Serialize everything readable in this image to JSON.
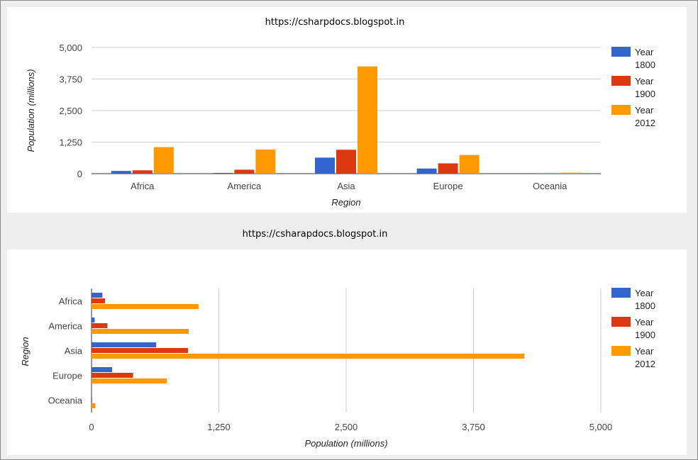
{
  "colors": {
    "year_1800": "#3366cc",
    "year_1900": "#dc3912",
    "year_2012": "#ff9900",
    "gridline": "#cccccc",
    "baseline": "#333333",
    "band": "#eeeeee"
  },
  "chart_data": [
    {
      "type": "bar",
      "orientation": "vertical",
      "title": "https://csharpdocs.blogspot.in",
      "xlabel": "Region",
      "ylabel": "Population (millions)",
      "categories": [
        "Africa",
        "America",
        "Asia",
        "Europe",
        "Oceania"
      ],
      "ylim": [
        0,
        5000
      ],
      "ticks": [
        0,
        1250,
        2500,
        3750,
        5000
      ],
      "tick_labels": [
        "0",
        "1,250",
        "2,500",
        "3,750",
        "5,000"
      ],
      "grid": true,
      "legend_position": "right",
      "series": [
        {
          "name": "Year 1800",
          "name_lines": [
            "Year",
            "1800"
          ],
          "color": "#3366cc",
          "values": [
            107,
            31,
            635,
            203,
            2
          ]
        },
        {
          "name": "Year 1900",
          "name_lines": [
            "Year",
            "1900"
          ],
          "color": "#dc3912",
          "values": [
            133,
            156,
            947,
            408,
            6
          ]
        },
        {
          "name": "Year 2012",
          "name_lines": [
            "Year",
            "2012"
          ],
          "color": "#ff9900",
          "values": [
            1052,
            954,
            4250,
            740,
            38
          ]
        }
      ]
    },
    {
      "type": "bar",
      "orientation": "horizontal",
      "title": "https://csharapdocs.blogspot.in",
      "xlabel": "Population (millions)",
      "ylabel": "Region",
      "categories": [
        "Africa",
        "America",
        "Asia",
        "Europe",
        "Oceania"
      ],
      "xlim": [
        0,
        5000
      ],
      "ticks": [
        0,
        1250,
        2500,
        3750,
        5000
      ],
      "tick_labels": [
        "0",
        "1,250",
        "2,500",
        "3,750",
        "5,000"
      ],
      "grid": true,
      "legend_position": "right",
      "series": [
        {
          "name": "Year 1800",
          "name_lines": [
            "Year",
            "1800"
          ],
          "color": "#3366cc",
          "values": [
            107,
            31,
            635,
            203,
            2
          ]
        },
        {
          "name": "Year 1900",
          "name_lines": [
            "Year",
            "1900"
          ],
          "color": "#dc3912",
          "values": [
            133,
            156,
            947,
            408,
            6
          ]
        },
        {
          "name": "Year 2012",
          "name_lines": [
            "Year",
            "2012"
          ],
          "color": "#ff9900",
          "values": [
            1052,
            954,
            4250,
            740,
            38
          ]
        }
      ]
    }
  ]
}
